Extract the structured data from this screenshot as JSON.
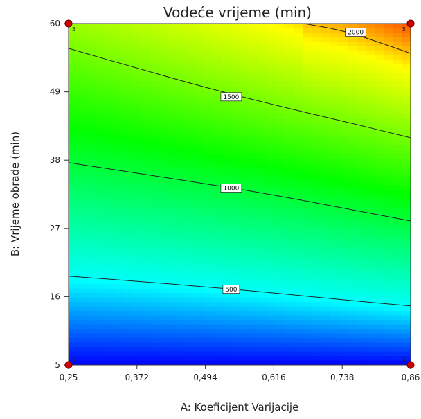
{
  "chart_data": {
    "type": "heatmap",
    "title": "Vodeće vrijeme (min)",
    "xlabel": "A: Koeficijent Varijacije",
    "ylabel": "B: Vrijeme obrade (min)",
    "xlim": [
      0.25,
      0.86
    ],
    "ylim": [
      5,
      60
    ],
    "x_ticks": [
      0.25,
      0.372,
      0.494,
      0.616,
      0.738,
      0.86
    ],
    "x_tick_labels": [
      "0,25",
      "0,372",
      "0,494",
      "0,616",
      "0,738",
      "0,86"
    ],
    "y_ticks": [
      5,
      16,
      27,
      38,
      49,
      60
    ],
    "y_tick_labels": [
      "5",
      "16",
      "27",
      "38",
      "49",
      "60"
    ],
    "color_range": [
      0,
      2300
    ],
    "colormap": [
      "#0000ff",
      "#00ffff",
      "#00ff00",
      "#ffff00",
      "#ff0000"
    ],
    "contours": [
      {
        "label": "500",
        "label_x": 0.54,
        "label_y": 17.2,
        "points": [
          [
            0.25,
            19.3
          ],
          [
            0.372,
            18.5
          ],
          [
            0.494,
            17.6
          ],
          [
            0.616,
            16.6
          ],
          [
            0.738,
            15.5
          ],
          [
            0.86,
            14.5
          ]
        ]
      },
      {
        "label": "1000",
        "label_x": 0.54,
        "label_y": 33.5,
        "points": [
          [
            0.25,
            37.6
          ],
          [
            0.372,
            35.9
          ],
          [
            0.494,
            34.2
          ],
          [
            0.616,
            32.4
          ],
          [
            0.738,
            30.3
          ],
          [
            0.86,
            28.2
          ]
        ]
      },
      {
        "label": "1500",
        "label_x": 0.54,
        "label_y": 48.2,
        "points": [
          [
            0.25,
            56.0
          ],
          [
            0.372,
            52.8
          ],
          [
            0.494,
            49.7
          ],
          [
            0.616,
            46.9
          ],
          [
            0.738,
            44.3
          ],
          [
            0.86,
            41.6
          ]
        ]
      },
      {
        "label": "2000",
        "label_x": 0.762,
        "label_y": 58.6,
        "points": [
          [
            0.67,
            60.0
          ],
          [
            0.738,
            58.9
          ],
          [
            0.8,
            57.1
          ],
          [
            0.86,
            55.2
          ]
        ]
      }
    ],
    "design_points": [
      {
        "x": 0.25,
        "y": 60,
        "label": "5"
      },
      {
        "x": 0.86,
        "y": 60,
        "label": "5"
      },
      {
        "x": 0.25,
        "y": 5,
        "label": "5"
      },
      {
        "x": 0.86,
        "y": 5,
        "label": "5"
      }
    ]
  }
}
